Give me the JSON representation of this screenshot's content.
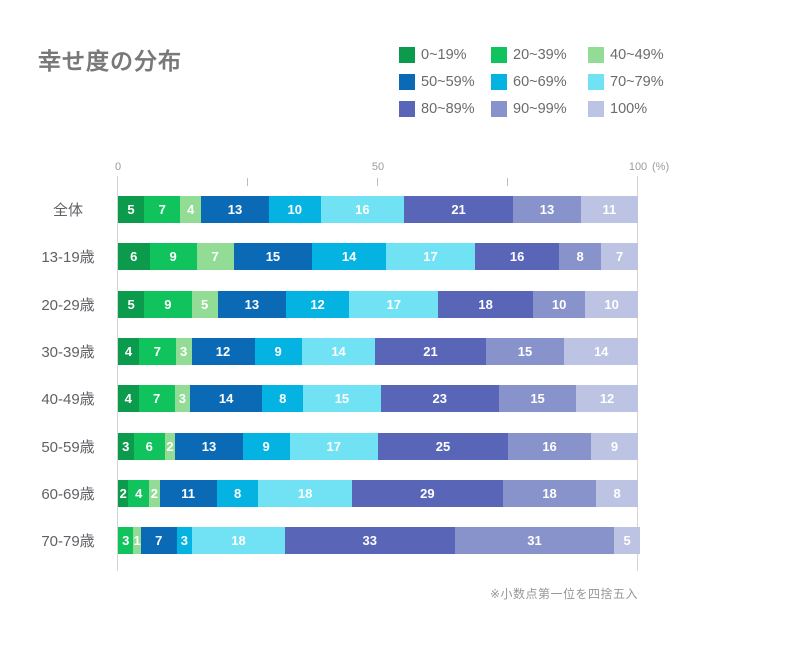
{
  "title": "幸せ度の分布",
  "axis": {
    "tick_labels": [
      "0",
      "50",
      "100"
    ],
    "unit": "(%)"
  },
  "footnote": "※小数点第一位を四捨五入",
  "legend": [
    {
      "label": "0~19%",
      "color": "#0c9b4d"
    },
    {
      "label": "20~39%",
      "color": "#10c35d"
    },
    {
      "label": "40~49%",
      "color": "#93dc95"
    },
    {
      "label": "50~59%",
      "color": "#0b6ab6"
    },
    {
      "label": "60~69%",
      "color": "#05b3e2"
    },
    {
      "label": "70~79%",
      "color": "#70e2f4"
    },
    {
      "label": "80~89%",
      "color": "#5966b8"
    },
    {
      "label": "90~99%",
      "color": "#8893cb"
    },
    {
      "label": "100%",
      "color": "#bcc3e3"
    }
  ],
  "chart_data": {
    "type": "bar",
    "orientation": "horizontal",
    "stacked": true,
    "title": "幸せ度の分布",
    "xlabel": "(%)",
    "xlim": [
      0,
      100
    ],
    "x_ticks": [
      0,
      25,
      50,
      75,
      100
    ],
    "legend_position": "top-right",
    "note": "※小数点第一位を四捨五入",
    "series_labels": [
      "0~19%",
      "20~39%",
      "40~49%",
      "50~59%",
      "60~69%",
      "70~79%",
      "80~89%",
      "90~99%",
      "100%"
    ],
    "categories": [
      "全体",
      "13-19歳",
      "20-29歳",
      "30-39歳",
      "40-49歳",
      "50-59歳",
      "60-69歳",
      "70-79歳"
    ],
    "rows": [
      {
        "label": "全体",
        "values": [
          5,
          7,
          4,
          13,
          10,
          16,
          21,
          13,
          11
        ]
      },
      {
        "label": "13-19歳",
        "values": [
          6,
          9,
          7,
          15,
          14,
          17,
          16,
          8,
          7
        ]
      },
      {
        "label": "20-29歳",
        "values": [
          5,
          9,
          5,
          13,
          12,
          17,
          18,
          10,
          10
        ]
      },
      {
        "label": "30-39歳",
        "values": [
          4,
          7,
          3,
          12,
          9,
          14,
          21,
          15,
          14
        ]
      },
      {
        "label": "40-49歳",
        "values": [
          4,
          7,
          3,
          14,
          8,
          15,
          23,
          15,
          12
        ]
      },
      {
        "label": "50-59歳",
        "values": [
          3,
          6,
          2,
          13,
          9,
          17,
          25,
          16,
          9
        ]
      },
      {
        "label": "60-69歳",
        "values": [
          2,
          4,
          2,
          11,
          8,
          18,
          29,
          18,
          8
        ]
      },
      {
        "label": "70-79歳",
        "values": [
          0,
          3,
          1,
          7,
          3,
          18,
          33,
          31,
          5
        ]
      }
    ]
  }
}
